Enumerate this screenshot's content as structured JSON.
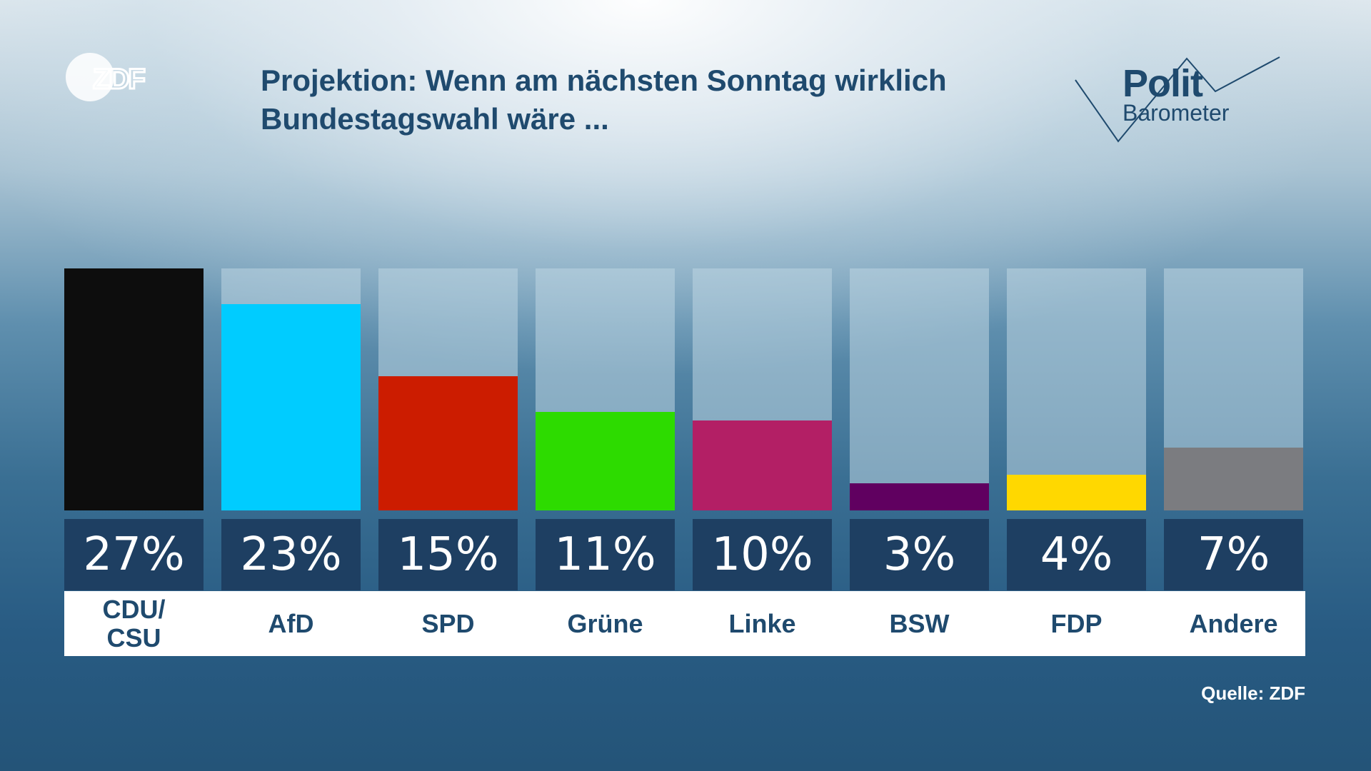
{
  "header": {
    "logo": "ZDF",
    "title_line1": "Projektion: Wenn am nächsten Sonntag wirklich",
    "title_line2": "Bundestagswahl wäre ...",
    "brand_line1": "Polit",
    "brand_line2": "Barometer"
  },
  "footer": {
    "source": "Quelle: ZDF"
  },
  "chart_data": {
    "type": "bar",
    "title": "Projektion: Wenn am nächsten Sonntag wirklich Bundestagswahl wäre ...",
    "xlabel": "",
    "ylabel": "",
    "ylim": [
      0,
      27
    ],
    "unit": "%",
    "categories": [
      "CDU/\nCSU",
      "AfD",
      "SPD",
      "Grüne",
      "Linke",
      "BSW",
      "FDP",
      "Andere"
    ],
    "values": [
      27,
      23,
      15,
      11,
      10,
      3,
      4,
      7
    ],
    "labels": [
      "27%",
      "23%",
      "15%",
      "11%",
      "10%",
      "3%",
      "4%",
      "7%"
    ],
    "colors": [
      "#0d0d0d",
      "#00ccff",
      "#cc1c00",
      "#2ddb00",
      "#b31f65",
      "#600060",
      "#ffd800",
      "#7b7c80"
    ],
    "grid": false,
    "legend": "none"
  }
}
